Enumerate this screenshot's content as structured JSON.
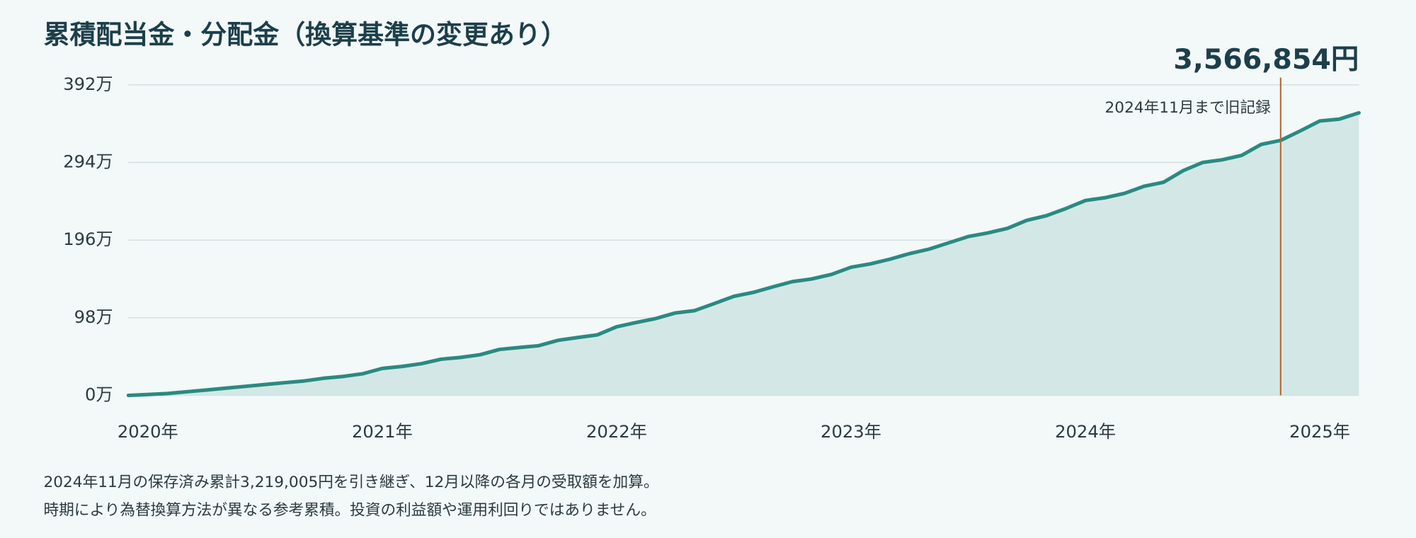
{
  "chart_data": {
    "type": "line",
    "title": "累積配当金・分配金（換算基準の変更あり）",
    "headline": "3,566,854円",
    "x": [
      2019.917,
      2020.0,
      2020.083,
      2020.167,
      2020.25,
      2020.333,
      2020.417,
      2020.5,
      2020.583,
      2020.667,
      2020.75,
      2020.833,
      2020.917,
      2021.0,
      2021.083,
      2021.167,
      2021.25,
      2021.333,
      2021.417,
      2021.5,
      2021.583,
      2021.667,
      2021.75,
      2021.833,
      2021.917,
      2022.0,
      2022.083,
      2022.167,
      2022.25,
      2022.333,
      2022.417,
      2022.5,
      2022.583,
      2022.667,
      2022.75,
      2022.833,
      2022.917,
      2023.0,
      2023.083,
      2023.167,
      2023.25,
      2023.333,
      2023.417,
      2023.5,
      2023.583,
      2023.667,
      2023.75,
      2023.833,
      2023.917,
      2024.0,
      2024.083,
      2024.167,
      2024.25,
      2024.333,
      2024.417,
      2024.5,
      2024.583,
      2024.667,
      2024.75,
      2024.833,
      2024.917,
      2025.0,
      2025.083,
      2025.167
    ],
    "series": [
      {
        "color": "#2a8a83",
        "fill": "#d3e8e6",
        "values": [
          0,
          1.1,
          2.3,
          4.6,
          6.8,
          9.1,
          11.4,
          13.7,
          16,
          18.2,
          21.6,
          23.9,
          27.3,
          34,
          36.5,
          40,
          45.6,
          47.9,
          51.3,
          58,
          60.4,
          62.7,
          69.5,
          73,
          76.3,
          86.6,
          92,
          97,
          104,
          107,
          116,
          125,
          130,
          137,
          143.6,
          147,
          152.7,
          161.8,
          166,
          172,
          179,
          184.6,
          192.6,
          200.5,
          205,
          210.8,
          221,
          226.8,
          235.9,
          246,
          249.5,
          255,
          264,
          269,
          283.7,
          294,
          297.4,
          303,
          316.8,
          321.9005,
          333.9,
          346.4,
          348.7,
          356.6854
        ]
      }
    ],
    "xlim": [
      2019.917,
      2025.167
    ],
    "xticks": [
      {
        "value": 2020,
        "label": "2020年"
      },
      {
        "value": 2021,
        "label": "2021年"
      },
      {
        "value": 2022,
        "label": "2022年"
      },
      {
        "value": 2023,
        "label": "2023年"
      },
      {
        "value": 2024,
        "label": "2024年"
      },
      {
        "value": 2025,
        "label": "2025年"
      }
    ],
    "ylim": [
      0,
      392
    ],
    "yticks": [
      {
        "value": 0,
        "label": "0万"
      },
      {
        "value": 98,
        "label": "98万"
      },
      {
        "value": 196,
        "label": "196万"
      },
      {
        "value": 294,
        "label": "294万"
      },
      {
        "value": 392,
        "label": "392万"
      }
    ],
    "grid": true,
    "annotation": {
      "x": 2024.833,
      "label": "2024年11月まで旧記録",
      "color": "#b5652e"
    },
    "footnotes": [
      "2024年11月の保存済み累計3,219,005円を引き継ぎ、12月以降の各月の受取額を加算。",
      "時期により為替換算方法が異なる参考累積。投資の利益額や運用利回りではありません。"
    ]
  }
}
